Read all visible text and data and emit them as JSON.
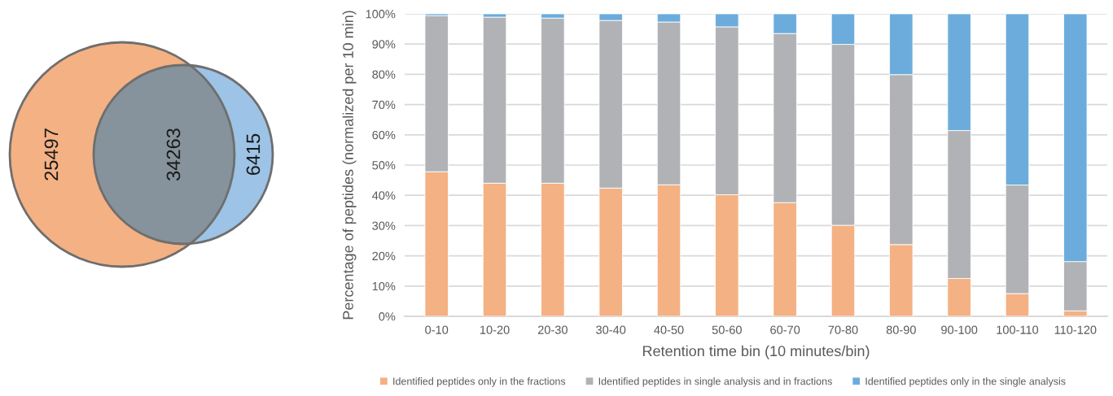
{
  "chart_data": [
    {
      "type": "other",
      "categories": [
        null,
        null,
        null
      ],
      "values": [
        25497,
        34263,
        6415
      ],
      "colors": [
        "#f4b183",
        "#86939c",
        "#9dc3e6"
      ],
      "data_labels": true
    },
    {
      "type": "bar",
      "stacked": true,
      "xlabel": "Retention time bin (10 minutes/bin)",
      "ylabel": "Percentage of peptides (normalized per 10 min)",
      "categories": [
        "0-10",
        "10-20",
        "20-30",
        "30-40",
        "40-50",
        "50-60",
        "60-70",
        "70-80",
        "80-90",
        "90-100",
        "100-110",
        "110-120"
      ],
      "series": [
        {
          "name": "Identified peptides only in the fractions",
          "color": "#f4b183",
          "values": [
            47.8,
            44.0,
            44.0,
            42.4,
            43.5,
            40.2,
            37.6,
            30.1,
            23.7,
            12.5,
            7.5,
            1.8
          ]
        },
        {
          "name": "Identified peptides in single analysis and in fractions",
          "color": "#b1b2b5",
          "values": [
            51.6,
            54.9,
            54.6,
            55.4,
            53.8,
            55.5,
            55.9,
            59.8,
            56.2,
            48.9,
            35.9,
            16.3
          ]
        },
        {
          "name": "Identified peptides only in the single analysis",
          "color": "#6cacdc",
          "values": [
            0.6,
            1.1,
            1.4,
            2.2,
            2.7,
            4.3,
            6.5,
            10.1,
            20.1,
            38.6,
            56.6,
            81.9
          ]
        }
      ],
      "ylim": [
        0,
        100
      ],
      "yticks": [
        {
          "value": 0,
          "label": "0%"
        },
        {
          "value": 10,
          "label": "10%"
        },
        {
          "value": 20,
          "label": "20%"
        },
        {
          "value": 30,
          "label": "30%"
        },
        {
          "value": 40,
          "label": "40%"
        },
        {
          "value": 50,
          "label": "50%"
        },
        {
          "value": 60,
          "label": "60%"
        },
        {
          "value": 70,
          "label": "70%"
        },
        {
          "value": 80,
          "label": "80%"
        },
        {
          "value": 90,
          "label": "90%"
        },
        {
          "value": 100,
          "label": "100%"
        }
      ],
      "grid": "y",
      "legend": "bottom"
    }
  ]
}
